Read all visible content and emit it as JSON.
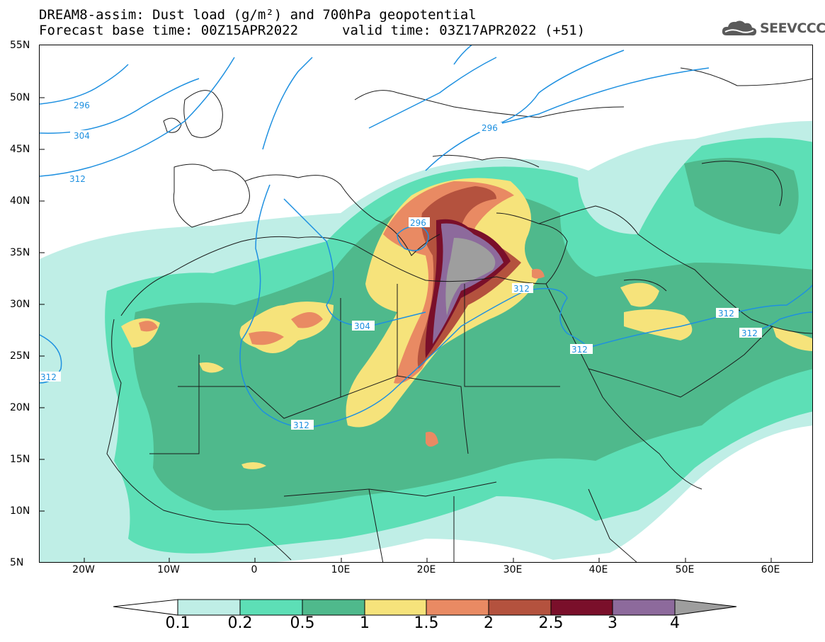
{
  "header": {
    "title_line1": "DREAM8-assim: Dust load (g/m²) and 700hPa geopotential",
    "title_line2": "Forecast base time: 00Z15APR2022",
    "valid_time": "valid time: 03Z17APR2022 (+51)",
    "logo_text": "SEEVCCC"
  },
  "axes": {
    "lat_labels": [
      "55N",
      "50N",
      "45N",
      "40N",
      "35N",
      "30N",
      "25N",
      "20N",
      "15N",
      "10N",
      "5N"
    ],
    "lon_labels": [
      "20W",
      "10W",
      "0",
      "10E",
      "20E",
      "30E",
      "40E",
      "50E",
      "60E"
    ]
  },
  "contours": {
    "labels": [
      "296",
      "304",
      "312",
      "296",
      "296",
      "304",
      "312",
      "312",
      "312",
      "312",
      "312",
      "312"
    ]
  },
  "colorbar": {
    "ticks": [
      "0.1",
      "0.2",
      "0.5",
      "1",
      "1.5",
      "2",
      "2.5",
      "3",
      "4"
    ],
    "colors": [
      "#ffffff",
      "#bfeee6",
      "#5ddfb6",
      "#4fb98c",
      "#f6e37b",
      "#e98a63",
      "#b4523e",
      "#7a0f2a",
      "#8d6a9c",
      "#9e9e9e"
    ]
  },
  "map": {
    "colors": {
      "land": "#ffffff",
      "border": "#1a1a1a",
      "contour": "#1e90e0",
      "dust_01": "#bfeee6",
      "dust_02": "#5ddfb6",
      "dust_05": "#4fb98c",
      "dust_1": "#f6e37b",
      "dust_15": "#e98a63",
      "dust_2": "#b4523e",
      "dust_25": "#7a0f2a",
      "dust_3": "#8d6a9c",
      "dust_4": "#9e9e9e"
    }
  }
}
